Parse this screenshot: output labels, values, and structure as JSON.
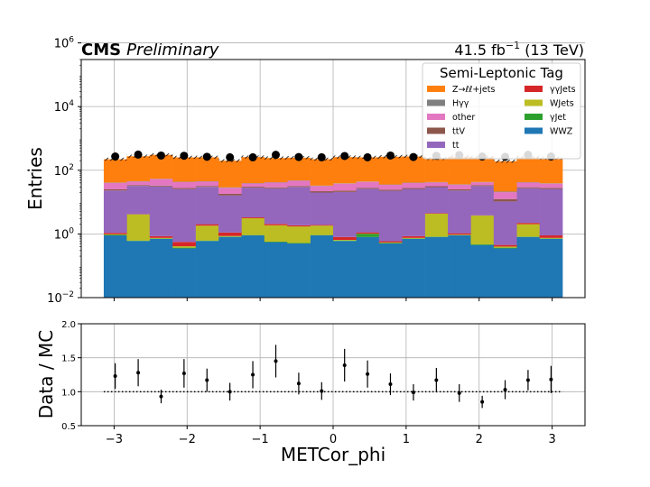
{
  "header": {
    "experiment": "CMS",
    "status": "Preliminary",
    "lumi_value": "41.5 fb",
    "lumi_exp": "−1",
    "lumi_energy": " (13 TeV)"
  },
  "chart_data": [
    {
      "type": "stacked-bar-histogram",
      "ylabel": "Entries",
      "yscale": "log",
      "ylim": [
        0.01,
        300000
      ],
      "yticks": [
        {
          "value": 0.01,
          "base": "10",
          "exp": "−2"
        },
        {
          "value": 1,
          "base": "10",
          "exp": "0"
        },
        {
          "value": 100,
          "base": "10",
          "exp": "2"
        },
        {
          "value": 10000,
          "base": "10",
          "exp": "4"
        },
        {
          "value": 1000000,
          "base": "10",
          "exp": "6"
        }
      ],
      "xlim": [
        -3.45,
        3.45
      ],
      "grid": true,
      "legend_title": "Semi-Leptonic Tag",
      "legend_position": "top-right",
      "bin_edges": [
        -3.1416,
        -2.8274,
        -2.5133,
        -2.1991,
        -1.885,
        -1.5708,
        -1.2566,
        -0.9425,
        -0.6283,
        -0.3142,
        0,
        0.3142,
        0.6283,
        0.9425,
        1.2566,
        1.5708,
        1.885,
        2.1991,
        2.5133,
        2.8274,
        3.1416
      ],
      "series": [
        {
          "name": "WWZ",
          "color": "#1f77b4",
          "values": [
            0.9,
            0.6,
            0.7,
            0.35,
            0.6,
            0.8,
            0.9,
            0.55,
            0.5,
            0.9,
            0.6,
            0.8,
            0.5,
            0.7,
            0.8,
            0.9,
            0.45,
            0.35,
            0.8,
            0.7
          ]
        },
        {
          "name": "γJet",
          "color": "#2ca02c",
          "values": [
            0.03,
            0.02,
            0.02,
            0.02,
            0.02,
            0.03,
            0.02,
            0.02,
            0.02,
            0.02,
            0.02,
            0.2,
            0.02,
            0.02,
            0.02,
            0.02,
            0.02,
            0.02,
            0.02,
            0.02
          ]
        },
        {
          "name": "WJets",
          "color": "#bcbd22",
          "values": [
            0.05,
            3.5,
            0.03,
            0.04,
            1.2,
            0.03,
            2.2,
            1.3,
            1.2,
            0.9,
            0.03,
            0.02,
            0.02,
            0.03,
            3.5,
            0.03,
            3.3,
            0.03,
            1.2,
            0.03
          ]
        },
        {
          "name": "γγJets",
          "color": "#d62728",
          "values": [
            0.1,
            0.05,
            0.1,
            0.15,
            0.2,
            0.25,
            0.2,
            0.2,
            0.15,
            0.1,
            0.15,
            0.1,
            0.05,
            0.1,
            0.15,
            0.1,
            0.05,
            0.05,
            0.2,
            0.15
          ]
        },
        {
          "name": "tt",
          "color": "#9467bd",
          "values": [
            22,
            28,
            30,
            25,
            28,
            15,
            25,
            25,
            28,
            18,
            20,
            25,
            22,
            25,
            25,
            22,
            28,
            10,
            25,
            25
          ]
        },
        {
          "name": "ttV",
          "color": "#8c564b",
          "values": [
            2,
            2,
            2,
            2,
            2,
            2,
            2,
            2,
            2,
            2,
            2,
            2,
            2,
            2,
            2,
            2,
            2,
            2,
            2,
            2
          ]
        },
        {
          "name": "other",
          "color": "#e377c2",
          "values": [
            15,
            10,
            20,
            15,
            12,
            10,
            8,
            12,
            15,
            10,
            15,
            15,
            10,
            12,
            10,
            10,
            8,
            8,
            12,
            10
          ]
        },
        {
          "name": "Hγγ",
          "color": "#7f7f7f",
          "values": [
            1,
            1,
            1,
            1,
            1,
            1,
            1,
            1,
            1,
            1,
            1,
            1,
            1,
            1,
            1,
            1,
            1,
            1,
            1,
            1
          ]
        },
        {
          "name": "Z→ℓℓ+jets",
          "color": "#ff7f0e",
          "values": [
            180,
            230,
            250,
            210,
            210,
            170,
            220,
            200,
            200,
            190,
            220,
            210,
            230,
            230,
            190,
            230,
            210,
            170,
            210,
            200
          ]
        }
      ],
      "data_points": {
        "name": "Data",
        "values": [
          270,
          310,
          290,
          285,
          265,
          255,
          255,
          305,
          260,
          255,
          280,
          255,
          290,
          260,
          285,
          300,
          270,
          265,
          305,
          270
        ]
      }
    },
    {
      "type": "ratio",
      "xlabel": "METCor_phi",
      "ylabel": "Data / MC",
      "ylim": [
        0.5,
        2.0
      ],
      "yticks": [
        0.5,
        1.0,
        1.5,
        2.0
      ],
      "ytick_labels": [
        "0.5",
        "1.0",
        "1.5",
        "2.0"
      ],
      "xlim": [
        -3.45,
        3.45
      ],
      "xticks": [
        -3,
        -2,
        -1,
        0,
        1,
        2,
        3
      ],
      "xtick_labels": [
        "−3",
        "−2",
        "−1",
        "0",
        "1",
        "2",
        "3"
      ],
      "grid": true,
      "reference_line": 1.0,
      "x": [
        -2.985,
        -2.67,
        -2.356,
        -2.042,
        -1.728,
        -1.414,
        -1.1,
        -0.785,
        -0.471,
        -0.157,
        0.157,
        0.471,
        0.785,
        1.1,
        1.414,
        1.728,
        2.042,
        2.356,
        2.67,
        2.985
      ],
      "values": [
        1.23,
        1.28,
        0.93,
        1.27,
        1.17,
        1.0,
        1.25,
        1.45,
        1.12,
        1.01,
        1.39,
        1.26,
        1.11,
        0.99,
        1.17,
        0.98,
        0.85,
        1.03,
        1.17,
        1.18
      ],
      "errors": [
        0.19,
        0.2,
        0.1,
        0.21,
        0.17,
        0.13,
        0.2,
        0.24,
        0.16,
        0.13,
        0.24,
        0.2,
        0.16,
        0.12,
        0.18,
        0.13,
        0.09,
        0.14,
        0.15,
        0.2
      ]
    }
  ]
}
